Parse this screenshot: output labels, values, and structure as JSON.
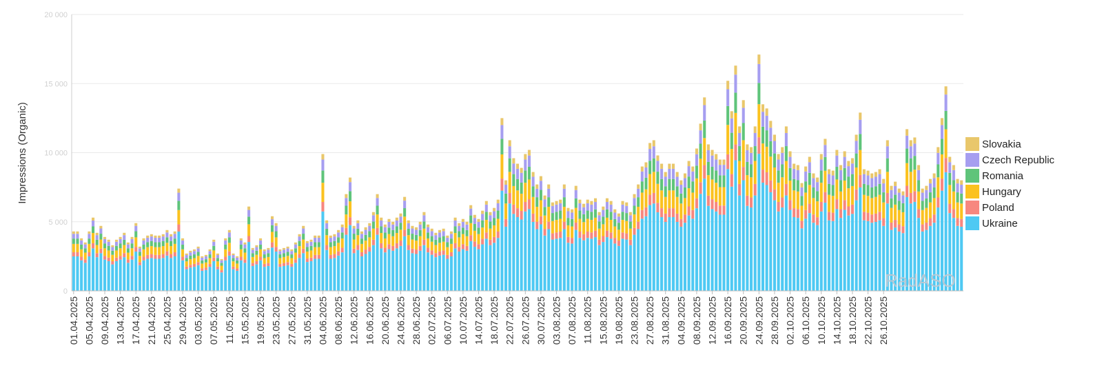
{
  "chart_data": {
    "type": "bar",
    "stacked": true,
    "title": "",
    "xlabel": "",
    "ylabel": "Impressions (Organic)",
    "ylim": [
      0,
      20000
    ],
    "yticks": [
      "0",
      "5 000",
      "10 000",
      "15 000",
      "20 000"
    ],
    "grid": true,
    "legend_position": "right",
    "watermark": "RadASO",
    "x_start": "2025-04-01",
    "x_tick_labels": [
      "01.04.2025",
      "05.04.2025",
      "09.04.2025",
      "13.04.2025",
      "17.04.2025",
      "21.04.2025",
      "25.04.2025",
      "29.04.2025",
      "03.05.2025",
      "07.05.2025",
      "11.05.2025",
      "15.05.2025",
      "19.05.2025",
      "23.05.2025",
      "27.05.2025",
      "31.05.2025",
      "04.06.2025",
      "08.06.2025",
      "12.06.2025",
      "16.06.2025",
      "20.06.2025",
      "24.06.2025",
      "28.06.2025",
      "02.07.2025",
      "06.07.2025",
      "10.07.2025",
      "14.07.2025",
      "18.07.2025",
      "22.07.2025",
      "26.07.2025",
      "30.07.2025",
      "03.08.2025",
      "07.08.2025",
      "11.08.2025",
      "15.08.2025",
      "19.08.2025",
      "23.08.2025",
      "27.08.2025",
      "31.08.2025",
      "04.09.2025",
      "08.09.2025",
      "12.09.2025",
      "16.09.2025",
      "20.09.2025",
      "24.09.2025",
      "28.09.2025",
      "02.10.2025",
      "06.10.2025",
      "10.10.2025",
      "14.10.2025",
      "18.10.2025",
      "22.10.2025",
      "26.10.2025"
    ],
    "totals": [
      4300,
      4300,
      3800,
      3500,
      4300,
      5300,
      4200,
      4700,
      3900,
      3700,
      3300,
      3700,
      3900,
      4200,
      3500,
      3900,
      4900,
      3200,
      3800,
      4000,
      4100,
      4000,
      4000,
      4100,
      4400,
      4100,
      4300,
      7400,
      3800,
      2700,
      2900,
      3000,
      3200,
      2500,
      2600,
      3000,
      3700,
      2700,
      2300,
      3800,
      4400,
      2700,
      2500,
      3800,
      3500,
      6100,
      3100,
      3300,
      3800,
      3000,
      3100,
      5400,
      4900,
      3000,
      3100,
      3200,
      3000,
      3500,
      4100,
      4700,
      3600,
      3700,
      4000,
      4000,
      9900,
      5100,
      4000,
      4100,
      4400,
      4800,
      7000,
      8200,
      4700,
      5100,
      4300,
      4600,
      4900,
      5700,
      7000,
      5300,
      4800,
      5200,
      5000,
      5300,
      5600,
      6800,
      5100,
      4700,
      4600,
      5000,
      5700,
      4800,
      4500,
      4200,
      4400,
      4500,
      4000,
      4300,
      5300,
      4900,
      5200,
      5000,
      6200,
      5500,
      5200,
      5800,
      6500,
      5700,
      6000,
      6600,
      12500,
      8000,
      10900,
      9600,
      9200,
      8900,
      9900,
      10200,
      8600,
      7700,
      8300,
      6900,
      7700,
      6400,
      6500,
      6600,
      7700,
      6000,
      5900,
      7600,
      6600,
      6300,
      6600,
      6500,
      6700,
      5700,
      6100,
      6700,
      6500,
      5900,
      5600,
      6500,
      6400,
      5700,
      7000,
      7700,
      9000,
      9300,
      10700,
      10900,
      9800,
      9200,
      8600,
      9200,
      9200,
      8600,
      8000,
      8500,
      9400,
      9000,
      10300,
      12100,
      14000,
      10600,
      10200,
      9900,
      9500,
      9500,
      15200,
      13000,
      16300,
      11900,
      13800,
      10600,
      10400,
      11900,
      17100,
      13500,
      13200,
      12300,
      11300,
      9900,
      10400,
      11900,
      10100,
      9200,
      9100,
      7800,
      9000,
      9700,
      8500,
      8200,
      9900,
      11000,
      8800,
      8700,
      10200,
      9100,
      10100,
      9400,
      9600,
      11300,
      12900,
      8800,
      8700,
      8500,
      8600,
      8800,
      8100,
      10900,
      7600,
      7900,
      7400,
      7200,
      11700,
      10900,
      11100,
      9100,
      7400,
      7600,
      8100,
      8500,
      10400,
      12500,
      14800,
      9700,
      9100,
      8100,
      8000
    ],
    "series": [
      {
        "name": "Ukraine",
        "color": "#4ec9f3",
        "share": 0.58
      },
      {
        "name": "Poland",
        "color": "#f7877f",
        "share": 0.07
      },
      {
        "name": "Hungary",
        "color": "#fbc21f",
        "share": 0.14
      },
      {
        "name": "Romania",
        "color": "#5fc47a",
        "share": 0.09
      },
      {
        "name": "Czech Republic",
        "color": "#a69ef0",
        "share": 0.08
      },
      {
        "name": "Slovakia",
        "color": "#e9c76b",
        "share": 0.04
      }
    ]
  }
}
